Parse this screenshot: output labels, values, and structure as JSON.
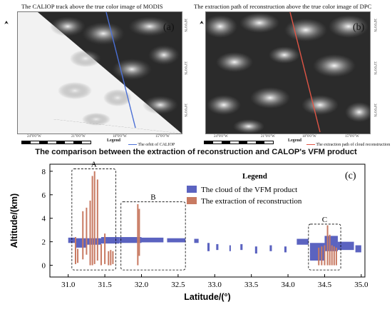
{
  "panel_a": {
    "title": "The CALIOP track above the true color image of MODIS",
    "letter": "(a)",
    "lon_ticks": [
      "24°0'0\"W",
      "21°0'0\"W",
      "18°0'0\"W",
      "15°0'0\"W"
    ],
    "lat_ticks": [
      "36°0'0\"N",
      "33°0'0\"N",
      "30°0'0\"N"
    ],
    "legend_title": "Legend",
    "legend_item": "The orbit of CALIOP",
    "line_color": "#4a6fd6"
  },
  "panel_b": {
    "title": "The extraction path of reconstruction above the true color image of DPC",
    "letter": "(b)",
    "lon_ticks": [
      "24°0'0\"W",
      "21°0'0\"W",
      "18°0'0\"W",
      "15°0'0\"W"
    ],
    "lat_ticks": [
      "36°0'0\"N",
      "33°0'0\"N",
      "30°0'0\"N"
    ],
    "legend_title": "Legend",
    "legend_item": "The extraction path of cloud reconstruction",
    "line_color": "#e05545"
  },
  "figure_title": "The comparison between the extraction of reconstruction and CALOP's VFM product",
  "chart_data": {
    "type": "bar",
    "panel_letter": "(c)",
    "xlabel": "Latitude/(°)",
    "ylabel": "Altitude/(km)",
    "xlim": [
      30.75,
      35.05
    ],
    "ylim": [
      -1,
      8.6
    ],
    "xticks": [
      31.0,
      31.5,
      32.0,
      32.5,
      33.0,
      33.5,
      34.0,
      34.5,
      35.0
    ],
    "yticks": [
      0,
      2,
      4,
      6,
      8
    ],
    "legend": {
      "title": "Legend",
      "items": [
        {
          "name": "The cloud of the VFM product",
          "color": "#5b63c0"
        },
        {
          "name": "The extraction of reconstruction",
          "color": "#c87a62"
        }
      ]
    },
    "region_labels": [
      "A",
      "B",
      "C"
    ],
    "regions": [
      {
        "label": "A",
        "x0": 31.05,
        "x1": 31.65,
        "y0": -0.4,
        "y1": 8.2
      },
      {
        "label": "B",
        "x0": 31.72,
        "x1": 32.6,
        "y0": -0.4,
        "y1": 5.4
      },
      {
        "label": "C",
        "x0": 34.28,
        "x1": 34.72,
        "y0": -0.4,
        "y1": 3.5
      }
    ],
    "vfm_cloud_segments": [
      {
        "x0": 31.0,
        "x1": 31.1,
        "base": 1.9,
        "top": 2.35
      },
      {
        "x0": 31.1,
        "x1": 31.25,
        "base": 1.5,
        "top": 2.3
      },
      {
        "x0": 31.25,
        "x1": 31.45,
        "base": 1.75,
        "top": 2.3
      },
      {
        "x0": 31.45,
        "x1": 31.7,
        "base": 1.85,
        "top": 2.4
      },
      {
        "x0": 31.7,
        "x1": 32.0,
        "base": 1.9,
        "top": 2.4
      },
      {
        "x0": 32.0,
        "x1": 32.3,
        "base": 1.95,
        "top": 2.35
      },
      {
        "x0": 32.35,
        "x1": 32.6,
        "base": 1.95,
        "top": 2.3
      },
      {
        "x0": 32.72,
        "x1": 32.78,
        "base": 1.9,
        "top": 2.25
      },
      {
        "x0": 32.9,
        "x1": 32.93,
        "base": 1.2,
        "top": 1.9
      },
      {
        "x0": 33.02,
        "x1": 33.05,
        "base": 1.3,
        "top": 1.8
      },
      {
        "x0": 33.2,
        "x1": 33.22,
        "base": 1.2,
        "top": 1.7
      },
      {
        "x0": 33.35,
        "x1": 33.38,
        "base": 1.3,
        "top": 1.8
      },
      {
        "x0": 33.55,
        "x1": 33.58,
        "base": 1.0,
        "top": 1.6
      },
      {
        "x0": 33.75,
        "x1": 33.78,
        "base": 1.2,
        "top": 1.7
      },
      {
        "x0": 33.95,
        "x1": 33.98,
        "base": 1.1,
        "top": 1.6
      },
      {
        "x0": 34.12,
        "x1": 34.28,
        "base": 1.75,
        "top": 2.25
      },
      {
        "x0": 34.3,
        "x1": 34.5,
        "base": 0.4,
        "top": 1.9
      },
      {
        "x0": 34.5,
        "x1": 34.68,
        "base": 1.2,
        "top": 2.5
      },
      {
        "x0": 34.68,
        "x1": 34.9,
        "base": 1.3,
        "top": 2.0
      },
      {
        "x0": 34.92,
        "x1": 35.0,
        "base": 1.1,
        "top": 1.7
      }
    ],
    "reconstruction_bars": [
      {
        "x": 31.1,
        "base": 0.1,
        "top": 2.4
      },
      {
        "x": 31.13,
        "base": 0.2,
        "top": 1.4
      },
      {
        "x": 31.2,
        "base": 0.5,
        "top": 4.6
      },
      {
        "x": 31.25,
        "base": 0.9,
        "top": 4.9
      },
      {
        "x": 31.3,
        "base": 0.0,
        "top": 5.5
      },
      {
        "x": 31.33,
        "base": 0.0,
        "top": 7.6
      },
      {
        "x": 31.36,
        "base": 0.1,
        "top": 8.0
      },
      {
        "x": 31.4,
        "base": 0.4,
        "top": 7.3
      },
      {
        "x": 31.45,
        "base": 0.0,
        "top": 1.8
      },
      {
        "x": 31.5,
        "base": 0.1,
        "top": 2.7
      },
      {
        "x": 31.55,
        "base": 0.0,
        "top": 1.2
      },
      {
        "x": 31.58,
        "base": 0.0,
        "top": 1.3
      },
      {
        "x": 31.61,
        "base": 0.1,
        "top": 1.2
      },
      {
        "x": 31.95,
        "base": 0.0,
        "top": 5.2
      },
      {
        "x": 31.97,
        "base": 0.8,
        "top": 4.8
      },
      {
        "x": 34.42,
        "base": 0.0,
        "top": 1.5
      },
      {
        "x": 34.46,
        "base": 0.0,
        "top": 1.6
      },
      {
        "x": 34.5,
        "base": 0.0,
        "top": 1.7
      },
      {
        "x": 34.54,
        "base": 0.0,
        "top": 3.4
      },
      {
        "x": 34.57,
        "base": 0.0,
        "top": 2.6
      },
      {
        "x": 34.6,
        "base": 0.0,
        "top": 1.7
      },
      {
        "x": 34.63,
        "base": 0.0,
        "top": 1.6
      },
      {
        "x": 34.66,
        "base": 0.0,
        "top": 1.5
      }
    ]
  }
}
